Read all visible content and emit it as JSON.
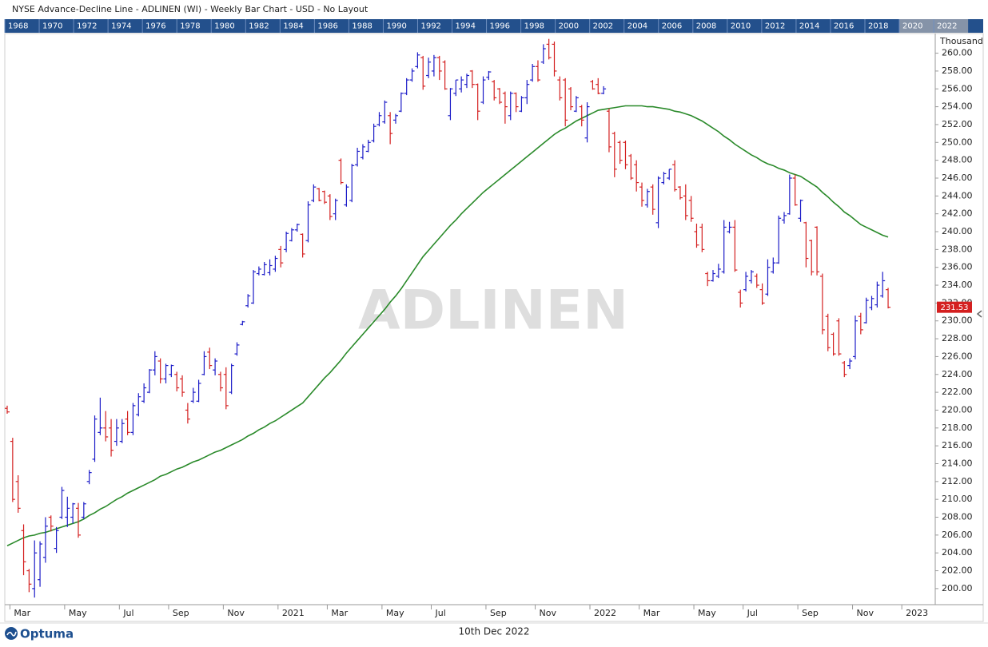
{
  "header": {
    "title": "NYSE  Advance-Decline Line - ADLINEN (WI) - Weekly Bar Chart - USD - No Layout"
  },
  "year_strip": {
    "years": [
      1968,
      1970,
      1972,
      1974,
      1976,
      1978,
      1980,
      1982,
      1984,
      1986,
      1988,
      1990,
      1992,
      1994,
      1996,
      1998,
      2000,
      2002,
      2004,
      2006,
      2008,
      2010,
      2012,
      2014,
      2016,
      2018,
      2020,
      2022
    ],
    "highlighted": [
      26,
      27
    ]
  },
  "footer": {
    "logo": "Optuma",
    "date": "10th Dec 2022"
  },
  "chart_data": {
    "type": "ohlc",
    "watermark": "ADLINEN",
    "y_unit": "Thousand",
    "categories": [
      null,
      "Mar",
      null,
      null,
      null,
      null,
      null,
      null,
      null,
      null,
      null,
      "May",
      null,
      null,
      null,
      null,
      null,
      null,
      null,
      null,
      null,
      "Jul",
      null,
      null,
      null,
      null,
      null,
      null,
      null,
      null,
      "Sep",
      null,
      null,
      null,
      null,
      null,
      null,
      null,
      null,
      null,
      "Nov",
      null,
      null,
      null,
      null,
      null,
      null,
      null,
      null,
      null,
      "2021",
      null,
      null,
      null,
      null,
      null,
      null,
      null,
      null,
      "Mar",
      null,
      null,
      null,
      null,
      null,
      null,
      null,
      null,
      null,
      "May",
      null,
      null,
      null,
      null,
      null,
      null,
      null,
      null,
      "Jul",
      null,
      null,
      null,
      null,
      null,
      null,
      null,
      null,
      null,
      "Sep",
      null,
      null,
      null,
      null,
      null,
      null,
      null,
      null,
      "Nov",
      null,
      null,
      null,
      null,
      null,
      null,
      null,
      null,
      null,
      "2022",
      null,
      null,
      null,
      null,
      null,
      null,
      null,
      null,
      "Mar",
      null,
      null,
      null,
      null,
      null,
      null,
      null,
      null,
      null,
      "May",
      null,
      null,
      null,
      null,
      null,
      null,
      null,
      null,
      "Jul",
      null,
      null,
      null,
      null,
      null,
      null,
      null,
      null,
      null,
      "Sep",
      null,
      null,
      null,
      null,
      null,
      null,
      null,
      null,
      null,
      "Nov",
      null,
      null,
      null,
      null,
      null,
      null,
      null,
      null,
      "2023"
    ],
    "ohlc": {
      "up_color": "#1c1cc8",
      "down_color": "#d42020",
      "open": [
        220.2,
        216.5,
        212.0,
        206.5,
        202.0,
        200.0,
        201.0,
        203.5,
        208.0,
        204.5,
        208.0,
        208.0,
        208.0,
        209.0,
        208.0,
        212.0,
        214.5,
        217.5,
        218.0,
        218.0,
        216.5,
        216.5,
        219.0,
        217.5,
        219.5,
        221.0,
        222.0,
        224.5,
        225.5,
        223.5,
        224.0,
        224.0,
        223.5,
        220.0,
        221.0,
        221.0,
        224.0,
        226.5,
        224.5,
        224.0,
        224.0,
        222.0,
        226.3,
        229.6,
        231.7,
        232.0,
        235.3,
        235.2,
        235.4,
        235.8,
        238.0,
        238.0,
        239.0,
        240.2,
        239.7,
        239.0,
        243.5,
        244.8,
        244.5,
        244.0,
        242.0,
        248.0,
        243.0,
        243.5,
        247.5,
        248.3,
        249.0,
        250.2,
        252.0,
        252.3,
        253.0,
        252.5,
        253.5,
        255.5,
        257.0,
        258.5,
        259.5,
        257.5,
        258.0,
        259.5,
        259.0,
        253.0,
        255.5,
        256.0,
        256.5,
        258.0,
        256.5,
        254.5,
        257.3,
        256.8,
        256.0,
        255.5,
        253.0,
        255.5,
        253.5,
        255.0,
        257.0,
        258.5,
        259.0,
        261.0,
        261.0,
        257.0,
        257.0,
        256.0,
        253.5,
        254.0,
        250.5,
        256.8,
        256.5,
        255.5,
        253.5,
        251.0,
        250.0,
        250.0,
        248.5,
        247.5,
        245.0,
        243.0,
        245.0,
        241.0,
        245.5,
        246.0,
        247.5,
        245.0,
        244.0,
        243.5,
        240.0,
        240.5,
        235.3,
        234.5,
        235.0,
        235.5,
        240.0,
        240.5,
        233.2,
        233.5,
        234.5,
        235.0,
        233.5,
        233.0,
        235.5,
        236.5,
        241.3,
        242.0,
        246.0,
        241.5,
        241.0,
        239.0,
        240.5,
        235.0,
        230.5,
        228.5,
        230.0,
        225.3,
        225.0,
        226.0,
        230.5,
        229.8,
        231.5,
        231.8,
        232.8,
        233.5,
        null,
        null,
        null
      ],
      "high": [
        220.5,
        216.9,
        212.7,
        207.2,
        202.2,
        205.4,
        205.3,
        208.0,
        208.2,
        206.9,
        211.4,
        210.3,
        209.6,
        209.6,
        209.7,
        213.3,
        219.4,
        221.4,
        219.9,
        219.0,
        219.0,
        219.0,
        219.9,
        220.8,
        221.9,
        223.0,
        224.6,
        226.6,
        225.8,
        225.2,
        225.1,
        224.3,
        223.9,
        220.8,
        222.5,
        223.4,
        226.6,
        227.0,
        225.8,
        224.3,
        224.8,
        225.2,
        227.6,
        230.0,
        233.0,
        235.7,
        236.1,
        236.6,
        236.9,
        237.3,
        238.4,
        240.0,
        240.4,
        240.9,
        239.8,
        243.4,
        245.3,
        244.9,
        244.6,
        244.2,
        243.7,
        248.2,
        245.3,
        247.6,
        249.4,
        249.8,
        250.3,
        252.1,
        253.4,
        254.7,
        253.4,
        253.2,
        255.6,
        257.2,
        258.3,
        260.1,
        259.7,
        259.5,
        259.8,
        259.7,
        259.2,
        256.1,
        257.0,
        257.4,
        257.7,
        258.1,
        256.6,
        257.4,
        258.0,
        257.0,
        256.1,
        255.7,
        255.7,
        255.6,
        255.2,
        257.0,
        258.8,
        259.2,
        261.0,
        261.6,
        261.3,
        257.4,
        257.2,
        256.2,
        255.2,
        254.2,
        254.5,
        257.0,
        257.2,
        256.3,
        253.8,
        251.2,
        250.2,
        250.2,
        248.7,
        248.0,
        245.5,
        244.8,
        245.3,
        246.2,
        246.7,
        247.0,
        248.0,
        245.1,
        245.3,
        244.0,
        240.9,
        240.9,
        235.5,
        235.7,
        236.4,
        241.3,
        241.1,
        241.3,
        233.5,
        235.5,
        235.7,
        235.3,
        234.2,
        236.9,
        237.1,
        241.8,
        242.2,
        246.4,
        246.4,
        243.6,
        241.1,
        239.1,
        240.6,
        235.3,
        230.8,
        228.7,
        230.3,
        225.5,
        225.8,
        230.6,
        230.9,
        232.6,
        232.8,
        234.4,
        235.5,
        233.7,
        null,
        null,
        null
      ],
      "low": [
        219.6,
        209.7,
        208.5,
        201.5,
        199.6,
        199.0,
        200.2,
        202.9,
        206.4,
        204.0,
        207.8,
        206.9,
        207.3,
        205.7,
        207.8,
        211.7,
        214.2,
        217.2,
        216.5,
        214.8,
        216.0,
        216.3,
        217.2,
        217.2,
        219.3,
        220.8,
        221.9,
        223.9,
        223.0,
        223.0,
        223.7,
        222.1,
        221.5,
        218.5,
        220.8,
        220.9,
        223.9,
        224.6,
        223.9,
        222.1,
        220.1,
        221.8,
        226.1,
        229.5,
        231.5,
        231.9,
        235.1,
        235.1,
        235.1,
        235.5,
        236.0,
        237.7,
        238.9,
        240.0,
        237.1,
        238.8,
        243.3,
        243.4,
        243.1,
        241.3,
        241.3,
        245.3,
        242.8,
        243.3,
        247.3,
        248.1,
        248.9,
        250.0,
        251.8,
        252.1,
        249.8,
        252.1,
        253.4,
        255.3,
        256.8,
        258.3,
        255.9,
        257.2,
        257.4,
        257.0,
        255.9,
        252.5,
        255.2,
        255.6,
        256.1,
        256.1,
        252.5,
        254.3,
        257.0,
        254.7,
        254.3,
        252.1,
        252.5,
        253.4,
        253.4,
        254.3,
        256.8,
        256.8,
        258.8,
        259.3,
        257.4,
        254.7,
        251.8,
        253.6,
        253.4,
        251.8,
        250.0,
        255.9,
        255.4,
        255.4,
        248.9,
        246.1,
        247.6,
        247.0,
        245.8,
        244.5,
        242.8,
        242.7,
        241.9,
        240.4,
        245.3,
        245.8,
        244.5,
        243.6,
        241.3,
        241.1,
        238.2,
        237.7,
        233.9,
        234.4,
        234.8,
        235.3,
        239.8,
        235.5,
        231.5,
        233.3,
        234.2,
        233.7,
        231.8,
        232.8,
        235.3,
        236.4,
        240.9,
        241.9,
        242.9,
        241.1,
        236.0,
        235.1,
        235.1,
        228.5,
        226.6,
        226.1,
        226.1,
        223.7,
        224.6,
        225.7,
        228.5,
        229.7,
        231.2,
        231.5,
        232.6,
        231.4,
        null,
        null,
        null
      ],
      "close": [
        219.8,
        210.0,
        209.0,
        203.0,
        200.5,
        204.0,
        205.0,
        207.0,
        207.0,
        206.5,
        211.0,
        209.0,
        209.5,
        206.0,
        209.5,
        213.0,
        219.0,
        218.0,
        217.0,
        215.5,
        218.0,
        218.5,
        217.5,
        220.5,
        221.5,
        222.5,
        224.5,
        226.0,
        223.5,
        225.0,
        225.0,
        222.5,
        222.0,
        219.0,
        222.0,
        223.0,
        226.0,
        225.0,
        225.5,
        222.5,
        220.5,
        225.0,
        227.3,
        229.9,
        232.8,
        235.5,
        235.8,
        236.3,
        236.2,
        237.0,
        236.5,
        239.8,
        240.2,
        240.8,
        237.5,
        243.0,
        245.0,
        243.5,
        243.3,
        241.7,
        243.5,
        245.5,
        245.0,
        247.4,
        249.0,
        249.5,
        250.0,
        251.8,
        253.0,
        254.5,
        251.0,
        253.0,
        255.5,
        257.0,
        258.0,
        259.8,
        256.3,
        259.0,
        259.5,
        258.0,
        256.0,
        256.0,
        257.0,
        257.0,
        257.5,
        256.5,
        253.5,
        257.0,
        257.9,
        255.0,
        254.5,
        254.0,
        255.5,
        254.0,
        255.0,
        256.5,
        258.5,
        257.0,
        260.5,
        259.5,
        258.0,
        255.0,
        252.5,
        254.0,
        255.0,
        252.5,
        254.0,
        256.0,
        255.5,
        256.0,
        249.5,
        247.0,
        248.0,
        247.5,
        246.0,
        245.5,
        243.5,
        244.5,
        242.5,
        246.0,
        246.5,
        247.0,
        244.7,
        243.8,
        241.8,
        241.5,
        238.5,
        238.0,
        234.5,
        235.3,
        235.8,
        240.5,
        240.5,
        235.7,
        232.0,
        235.0,
        235.5,
        234.0,
        232.0,
        236.0,
        236.5,
        241.5,
        241.8,
        246.0,
        243.0,
        243.5,
        237.0,
        235.5,
        235.5,
        229.0,
        227.0,
        226.3,
        226.3,
        224.0,
        225.5,
        230.0,
        229.0,
        232.3,
        232.5,
        234.0,
        234.5,
        231.53,
        null,
        null,
        null
      ]
    },
    "moving_average": {
      "color": "#2a8a2a",
      "values": [
        204.8,
        205.1,
        205.4,
        205.7,
        205.9,
        206.0,
        206.2,
        206.3,
        206.5,
        206.7,
        206.9,
        207.1,
        207.3,
        207.5,
        207.8,
        208.2,
        208.5,
        208.9,
        209.2,
        209.6,
        210.0,
        210.3,
        210.7,
        211.0,
        211.3,
        211.6,
        211.9,
        212.2,
        212.6,
        212.8,
        213.1,
        213.4,
        213.6,
        213.9,
        214.2,
        214.4,
        214.7,
        215.0,
        215.3,
        215.5,
        215.8,
        216.1,
        216.4,
        216.7,
        217.1,
        217.4,
        217.8,
        218.1,
        218.5,
        218.8,
        219.2,
        219.6,
        220.0,
        220.4,
        220.8,
        221.5,
        222.2,
        222.9,
        223.6,
        224.2,
        224.9,
        225.6,
        226.4,
        227.1,
        227.8,
        228.5,
        229.2,
        229.9,
        230.6,
        231.3,
        232.1,
        232.8,
        233.6,
        234.5,
        235.4,
        236.3,
        237.2,
        237.9,
        238.6,
        239.3,
        240.0,
        240.7,
        241.3,
        242.0,
        242.6,
        243.2,
        243.8,
        244.4,
        244.9,
        245.4,
        245.9,
        246.4,
        246.9,
        247.4,
        247.9,
        248.4,
        248.9,
        249.4,
        249.9,
        250.4,
        250.9,
        251.3,
        251.6,
        252.0,
        252.4,
        252.7,
        253.0,
        253.3,
        253.6,
        253.7,
        253.8,
        253.9,
        254.0,
        254.1,
        254.1,
        254.1,
        254.1,
        254.0,
        254.0,
        253.9,
        253.8,
        253.7,
        253.5,
        253.4,
        253.2,
        253.0,
        252.7,
        252.4,
        252.0,
        251.6,
        251.2,
        250.7,
        250.3,
        249.8,
        249.4,
        249.0,
        248.6,
        248.3,
        247.9,
        247.6,
        247.4,
        247.1,
        246.9,
        246.6,
        246.4,
        246.2,
        245.8,
        245.4,
        245.0,
        244.4,
        243.9,
        243.3,
        242.8,
        242.2,
        241.8,
        241.3,
        240.8,
        240.5,
        240.2,
        239.9,
        239.6,
        239.4,
        null,
        null,
        null
      ]
    },
    "ylim": [
      198.2,
      262.2
    ],
    "yticks": [
      {
        "value": 200,
        "label": "200.00"
      },
      {
        "value": 202,
        "label": "202.00"
      },
      {
        "value": 204,
        "label": "204.00"
      },
      {
        "value": 206,
        "label": "206.00"
      },
      {
        "value": 208,
        "label": "208.00"
      },
      {
        "value": 210,
        "label": "210.00"
      },
      {
        "value": 212,
        "label": "212.00"
      },
      {
        "value": 214,
        "label": "214.00"
      },
      {
        "value": 216,
        "label": "216.00"
      },
      {
        "value": 218,
        "label": "218.00"
      },
      {
        "value": 220,
        "label": "220.00"
      },
      {
        "value": 222,
        "label": "222.00"
      },
      {
        "value": 224,
        "label": "224.00"
      },
      {
        "value": 226,
        "label": "226.00"
      },
      {
        "value": 228,
        "label": "228.00"
      },
      {
        "value": 230,
        "label": "230.00"
      },
      {
        "value": 232,
        "label": "232.00"
      },
      {
        "value": 234,
        "label": "234.00"
      },
      {
        "value": 236,
        "label": "236.00"
      },
      {
        "value": 238,
        "label": "238.00"
      },
      {
        "value": 240,
        "label": "240.00"
      },
      {
        "value": 242,
        "label": "242.00"
      },
      {
        "value": 244,
        "label": "244.00"
      },
      {
        "value": 246,
        "label": "246.00"
      },
      {
        "value": 248,
        "label": "248.00"
      },
      {
        "value": 250,
        "label": "250.00"
      },
      {
        "value": 252,
        "label": "252.00"
      },
      {
        "value": 254,
        "label": "254.00"
      },
      {
        "value": 256,
        "label": "256.00"
      },
      {
        "value": 258,
        "label": "258.00"
      },
      {
        "value": 260,
        "label": "260.00"
      }
    ],
    "grid": false
  }
}
